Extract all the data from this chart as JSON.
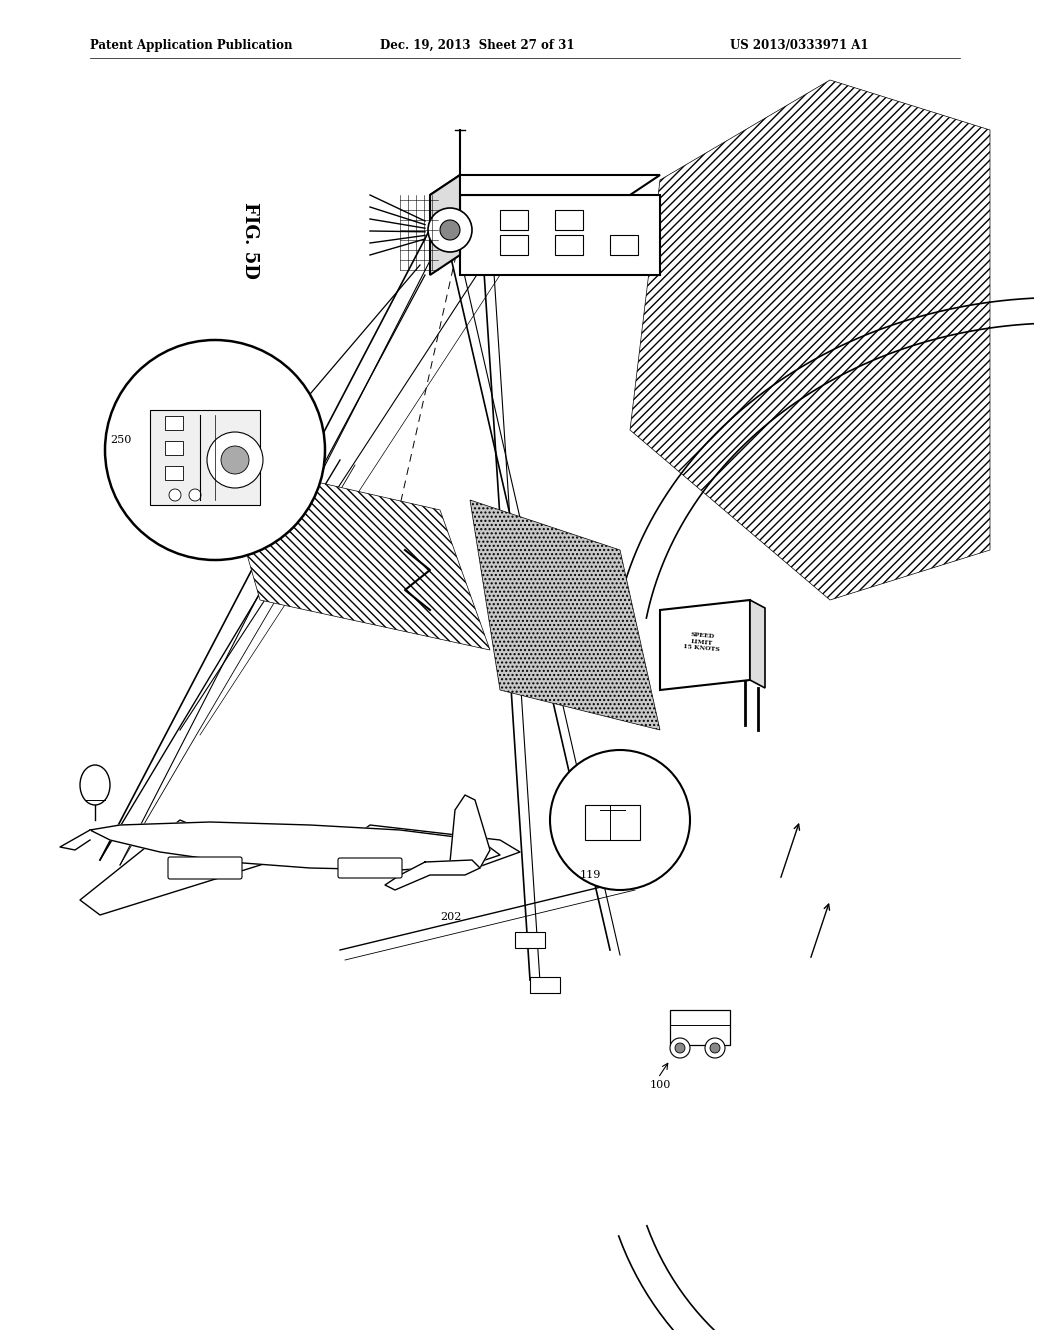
{
  "title_left": "Patent Application Publication",
  "title_center": "Dec. 19, 2013  Sheet 27 of 31",
  "title_right": "US 2013/0333971 A1",
  "fig_label": "FIG. 5D",
  "background": "#ffffff",
  "line_color": "#000000"
}
